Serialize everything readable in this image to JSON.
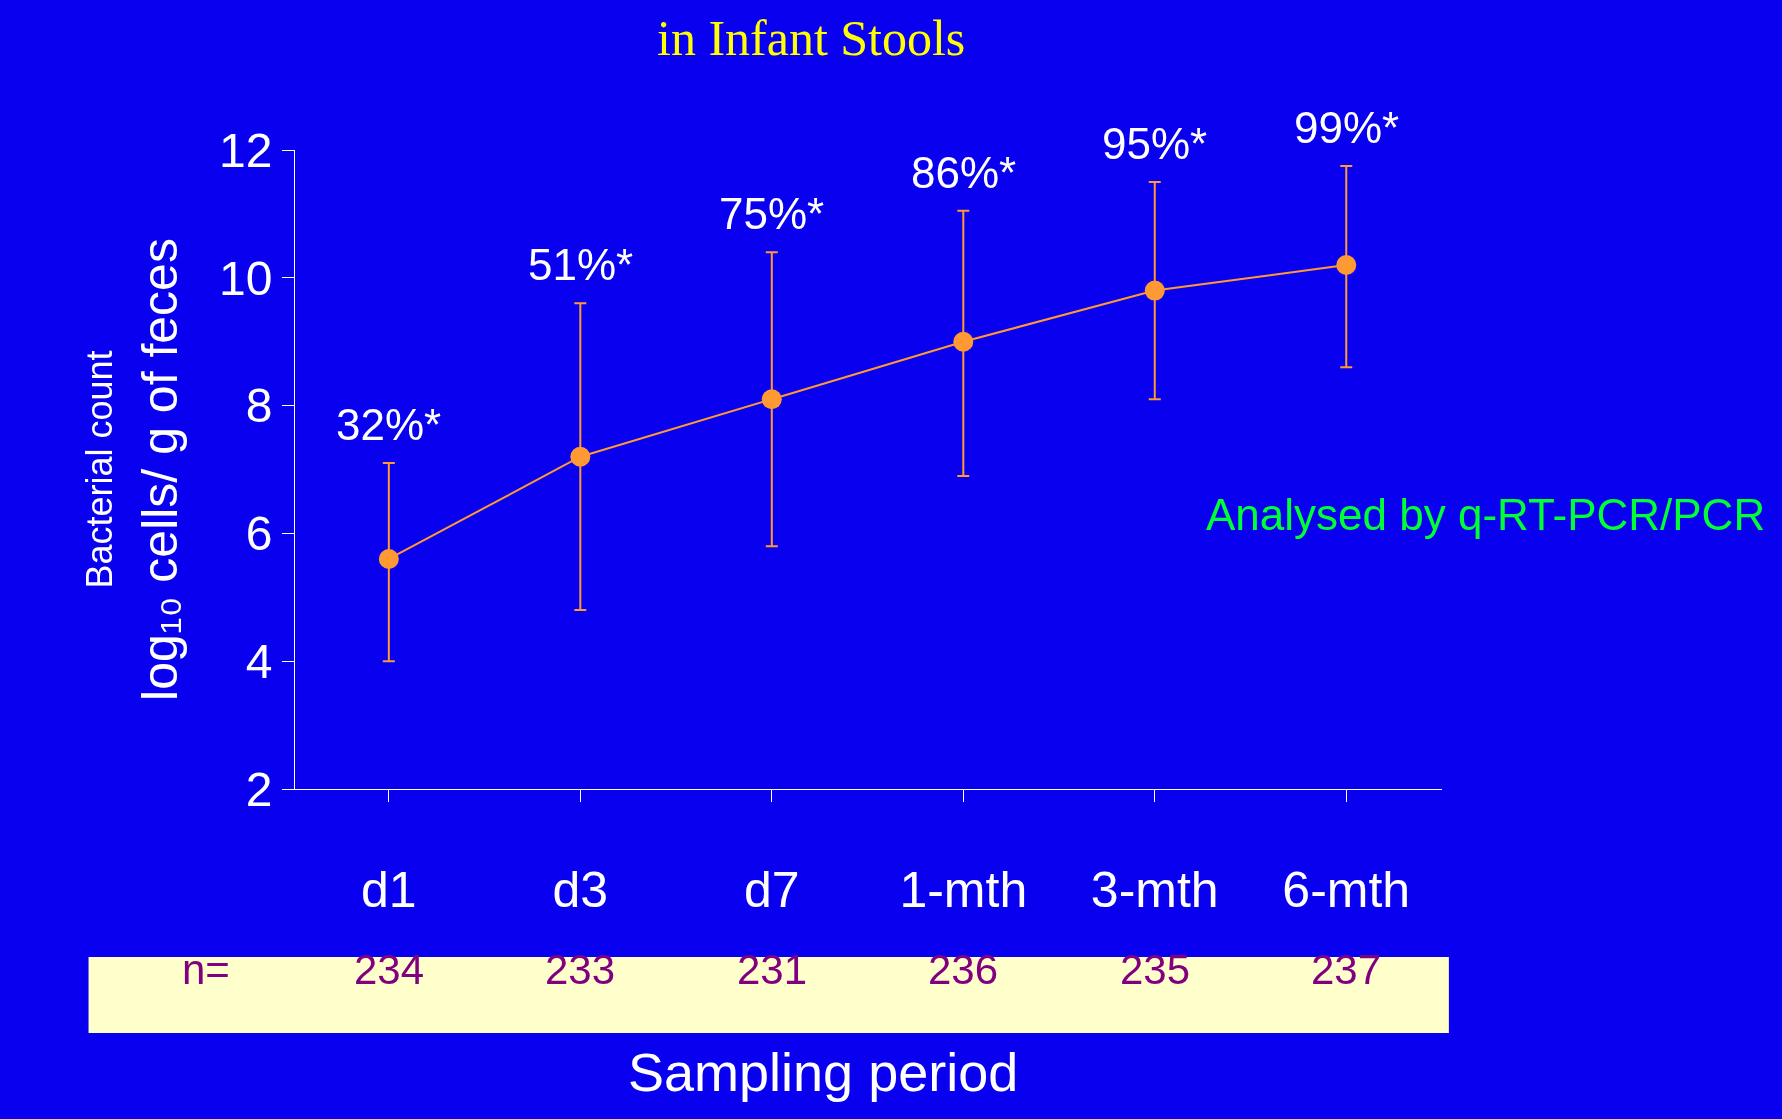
{
  "chart_data": {
    "type": "line",
    "title": "in Infant Stools",
    "xlabel": "Sampling period",
    "ylabel": "Bacterial count\nlog₁₀ cells/ g of feces",
    "categories": [
      "d1",
      "d3",
      "d7",
      "1-mth",
      "3-mth",
      "6-mth"
    ],
    "series": [
      {
        "color": "#ff9933",
        "values": [
          5.6,
          7.2,
          8.1,
          9.0,
          9.8,
          10.2
        ],
        "errors": [
          [
            4.0,
            7.1
          ],
          [
            4.8,
            9.6
          ],
          [
            5.8,
            10.4
          ],
          [
            6.9,
            11.05
          ],
          [
            8.1,
            11.5
          ],
          [
            8.6,
            11.75
          ]
        ]
      }
    ],
    "ylim": [
      2,
      12
    ],
    "yticks": [
      2,
      4,
      6,
      8,
      10,
      12
    ],
    "grid": false,
    "legend": false,
    "marker": "circle",
    "line_style": "solid",
    "annotations": [
      "32%*",
      "51%*",
      "75%*",
      "86%*",
      "95%*",
      "99%*",
      "n=",
      "234",
      "233",
      "231",
      "236",
      "235",
      "237",
      "Analysed by q-RT-PCR/PCR"
    ]
  }
}
